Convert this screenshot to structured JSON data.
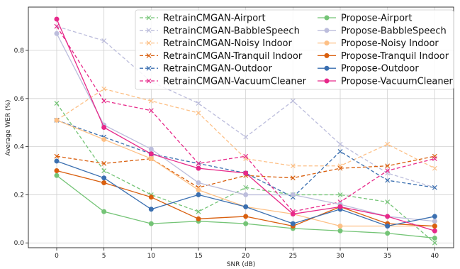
{
  "chart_data": {
    "type": "line",
    "xlabel": "SNR (dB)",
    "ylabel": "Average WER (%)",
    "x": [
      0,
      5,
      10,
      15,
      20,
      25,
      30,
      35,
      40
    ],
    "xlim": [
      -3,
      42
    ],
    "ylim": [
      -0.02,
      0.98
    ],
    "xticks": [
      "0",
      "5",
      "10",
      "15",
      "20",
      "25",
      "30",
      "35",
      "40"
    ],
    "yticks": [
      "0.0",
      "0.2",
      "0.4",
      "0.6",
      "0.8"
    ],
    "grid": true,
    "legend_position": "top-right",
    "series": [
      {
        "name": "RetrainCMGAN-Airport",
        "color": "#74c476",
        "style": "dashed",
        "marker": "x",
        "values": [
          0.58,
          0.3,
          0.2,
          0.13,
          0.23,
          0.2,
          0.2,
          0.17,
          0.0
        ]
      },
      {
        "name": "RetrainCMGAN-BabbleSpeech",
        "color": "#bcbddc",
        "style": "dashed",
        "marker": "x",
        "values": [
          0.9,
          0.84,
          0.67,
          0.58,
          0.44,
          0.59,
          0.41,
          0.29,
          0.23
        ]
      },
      {
        "name": "RetrainCMGAN-Noisy Indoor",
        "color": "#fdc086",
        "style": "dashed",
        "marker": "x",
        "values": [
          0.51,
          0.64,
          0.59,
          0.54,
          0.35,
          0.32,
          0.32,
          0.41,
          0.31
        ]
      },
      {
        "name": "RetrainCMGAN-Tranquil Indoor",
        "color": "#d95f0e",
        "style": "dashed",
        "marker": "x",
        "values": [
          0.36,
          0.33,
          0.35,
          0.23,
          0.28,
          0.27,
          0.31,
          0.32,
          0.36
        ]
      },
      {
        "name": "RetrainCMGAN-Outdoor",
        "color": "#3a6fb0",
        "style": "dashed",
        "marker": "x",
        "values": [
          0.51,
          0.44,
          0.37,
          0.33,
          0.29,
          0.19,
          0.38,
          0.26,
          0.23
        ]
      },
      {
        "name": "RetrainCMGAN-VacuumCleaner",
        "color": "#e7298a",
        "style": "dashed",
        "marker": "x",
        "values": [
          0.9,
          0.59,
          0.55,
          0.33,
          0.36,
          0.13,
          0.17,
          0.3,
          0.35
        ]
      },
      {
        "name": "Propose-Airport",
        "color": "#74c476",
        "style": "solid",
        "marker": "o",
        "values": [
          0.28,
          0.13,
          0.08,
          0.09,
          0.08,
          0.06,
          0.05,
          0.04,
          0.02
        ]
      },
      {
        "name": "Propose-BabbleSpeech",
        "color": "#bcbddc",
        "style": "solid",
        "marker": "o",
        "values": [
          0.87,
          0.49,
          0.39,
          0.25,
          0.2,
          0.2,
          0.16,
          0.11,
          0.09
        ]
      },
      {
        "name": "Propose-Noisy Indoor",
        "color": "#fdc086",
        "style": "solid",
        "marker": "o",
        "values": [
          0.51,
          0.43,
          0.35,
          0.22,
          0.15,
          0.12,
          0.07,
          0.07,
          0.07
        ]
      },
      {
        "name": "Propose-Tranquil Indoor",
        "color": "#d95f0e",
        "style": "solid",
        "marker": "o",
        "values": [
          0.3,
          0.25,
          0.19,
          0.1,
          0.11,
          0.07,
          0.15,
          0.08,
          0.07
        ]
      },
      {
        "name": "Propose-Outdoor",
        "color": "#3a6fb0",
        "style": "solid",
        "marker": "o",
        "values": [
          0.34,
          0.27,
          0.14,
          0.2,
          0.15,
          0.08,
          0.14,
          0.07,
          0.11
        ]
      },
      {
        "name": "Propose-VacuumCleaner",
        "color": "#e7298a",
        "style": "solid",
        "marker": "o",
        "values": [
          0.93,
          0.48,
          0.37,
          0.31,
          0.29,
          0.12,
          0.15,
          0.11,
          0.05
        ]
      }
    ]
  }
}
